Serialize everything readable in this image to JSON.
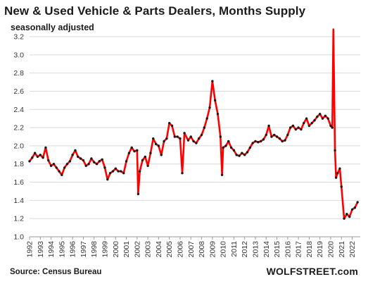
{
  "title": "New & Used Vehicle & Parts Dealers, Months Supply",
  "subtitle": "seasonally adjusted",
  "source": "Source: Census Bureau",
  "brand": "WOLFSTREET.com",
  "colors": {
    "line": "#ff0000",
    "marker": "#1a1a1a",
    "grid": "#d9d9d9",
    "text": "#1b1b1b"
  },
  "chart_data": {
    "type": "line",
    "title": "New & Used Vehicle & Parts Dealers, Months Supply",
    "subtitle": "seasonally adjusted",
    "xlabel": "",
    "ylabel": "",
    "ylim": [
      1.0,
      3.2
    ],
    "yticks": [
      "1.0",
      "1.2",
      "1.4",
      "1.6",
      "1.8",
      "2.0",
      "2.2",
      "2.4",
      "2.6",
      "2.8",
      "3.0",
      "3.2"
    ],
    "xticks": [
      "1992",
      "1993",
      "1994",
      "1995",
      "1996",
      "1997",
      "1998",
      "1999",
      "2000",
      "2001",
      "2002",
      "2003",
      "2004",
      "2005",
      "2006",
      "2007",
      "2008",
      "2009",
      "2010",
      "2011",
      "2012",
      "2013",
      "2014",
      "2015",
      "2016",
      "2017",
      "2018",
      "2019",
      "2020",
      "2021",
      "2022"
    ],
    "grid": "horizontal",
    "markers": true,
    "series": [
      {
        "points": [
          [
            1992.0,
            1.83
          ],
          [
            1992.25,
            1.87
          ],
          [
            1992.5,
            1.92
          ],
          [
            1992.75,
            1.88
          ],
          [
            1993.0,
            1.9
          ],
          [
            1993.25,
            1.87
          ],
          [
            1993.5,
            1.98
          ],
          [
            1993.75,
            1.84
          ],
          [
            1994.0,
            1.78
          ],
          [
            1994.25,
            1.8
          ],
          [
            1994.5,
            1.76
          ],
          [
            1994.75,
            1.72
          ],
          [
            1995.0,
            1.68
          ],
          [
            1995.25,
            1.76
          ],
          [
            1995.5,
            1.8
          ],
          [
            1995.75,
            1.83
          ],
          [
            1996.0,
            1.9
          ],
          [
            1996.25,
            1.95
          ],
          [
            1996.5,
            1.88
          ],
          [
            1996.75,
            1.86
          ],
          [
            1997.0,
            1.84
          ],
          [
            1997.25,
            1.78
          ],
          [
            1997.5,
            1.8
          ],
          [
            1997.75,
            1.86
          ],
          [
            1998.0,
            1.82
          ],
          [
            1998.25,
            1.8
          ],
          [
            1998.5,
            1.83
          ],
          [
            1998.75,
            1.85
          ],
          [
            1999.0,
            1.76
          ],
          [
            1999.25,
            1.63
          ],
          [
            1999.5,
            1.7
          ],
          [
            1999.75,
            1.72
          ],
          [
            2000.0,
            1.75
          ],
          [
            2000.25,
            1.72
          ],
          [
            2000.5,
            1.72
          ],
          [
            2000.75,
            1.7
          ],
          [
            2001.0,
            1.83
          ],
          [
            2001.25,
            1.92
          ],
          [
            2001.5,
            1.98
          ],
          [
            2001.75,
            1.94
          ],
          [
            2002.0,
            1.95
          ],
          [
            2002.1,
            1.47
          ],
          [
            2002.25,
            1.72
          ],
          [
            2002.5,
            1.84
          ],
          [
            2002.75,
            1.88
          ],
          [
            2003.0,
            1.78
          ],
          [
            2003.25,
            1.92
          ],
          [
            2003.5,
            2.08
          ],
          [
            2003.75,
            2.02
          ],
          [
            2004.0,
            2.0
          ],
          [
            2004.25,
            1.9
          ],
          [
            2004.5,
            2.05
          ],
          [
            2004.75,
            2.08
          ],
          [
            2005.0,
            2.25
          ],
          [
            2005.25,
            2.22
          ],
          [
            2005.5,
            2.1
          ],
          [
            2005.75,
            2.1
          ],
          [
            2006.0,
            2.08
          ],
          [
            2006.2,
            1.7
          ],
          [
            2006.4,
            2.14
          ],
          [
            2006.75,
            2.06
          ],
          [
            2007.0,
            2.1
          ],
          [
            2007.25,
            2.05
          ],
          [
            2007.5,
            2.03
          ],
          [
            2007.75,
            2.08
          ],
          [
            2008.0,
            2.12
          ],
          [
            2008.25,
            2.2
          ],
          [
            2008.5,
            2.3
          ],
          [
            2008.75,
            2.42
          ],
          [
            2009.0,
            2.71
          ],
          [
            2009.25,
            2.5
          ],
          [
            2009.5,
            2.35
          ],
          [
            2009.75,
            2.1
          ],
          [
            2009.9,
            1.68
          ],
          [
            2010.0,
            1.98
          ],
          [
            2010.25,
            2.0
          ],
          [
            2010.5,
            2.05
          ],
          [
            2010.75,
            1.98
          ],
          [
            2011.0,
            1.95
          ],
          [
            2011.25,
            1.9
          ],
          [
            2011.5,
            1.89
          ],
          [
            2011.75,
            1.92
          ],
          [
            2012.0,
            1.9
          ],
          [
            2012.25,
            1.93
          ],
          [
            2012.5,
            1.98
          ],
          [
            2012.75,
            2.03
          ],
          [
            2013.0,
            2.05
          ],
          [
            2013.25,
            2.04
          ],
          [
            2013.5,
            2.05
          ],
          [
            2013.75,
            2.07
          ],
          [
            2014.0,
            2.12
          ],
          [
            2014.25,
            2.22
          ],
          [
            2014.5,
            2.1
          ],
          [
            2014.75,
            2.12
          ],
          [
            2015.0,
            2.1
          ],
          [
            2015.25,
            2.08
          ],
          [
            2015.5,
            2.05
          ],
          [
            2015.75,
            2.06
          ],
          [
            2016.0,
            2.12
          ],
          [
            2016.25,
            2.2
          ],
          [
            2016.5,
            2.22
          ],
          [
            2016.75,
            2.18
          ],
          [
            2017.0,
            2.2
          ],
          [
            2017.25,
            2.18
          ],
          [
            2017.5,
            2.25
          ],
          [
            2017.75,
            2.3
          ],
          [
            2018.0,
            2.22
          ],
          [
            2018.25,
            2.25
          ],
          [
            2018.5,
            2.28
          ],
          [
            2018.75,
            2.32
          ],
          [
            2019.0,
            2.35
          ],
          [
            2019.25,
            2.3
          ],
          [
            2019.5,
            2.33
          ],
          [
            2019.75,
            2.3
          ],
          [
            2020.0,
            2.22
          ],
          [
            2020.15,
            2.2
          ],
          [
            2020.25,
            3.28
          ],
          [
            2020.4,
            1.95
          ],
          [
            2020.5,
            1.65
          ],
          [
            2020.65,
            1.7
          ],
          [
            2020.85,
            1.75
          ],
          [
            2021.0,
            1.55
          ],
          [
            2021.25,
            1.2
          ],
          [
            2021.5,
            1.25
          ],
          [
            2021.75,
            1.22
          ],
          [
            2022.0,
            1.3
          ],
          [
            2022.25,
            1.32
          ],
          [
            2022.5,
            1.38
          ]
        ]
      }
    ]
  }
}
